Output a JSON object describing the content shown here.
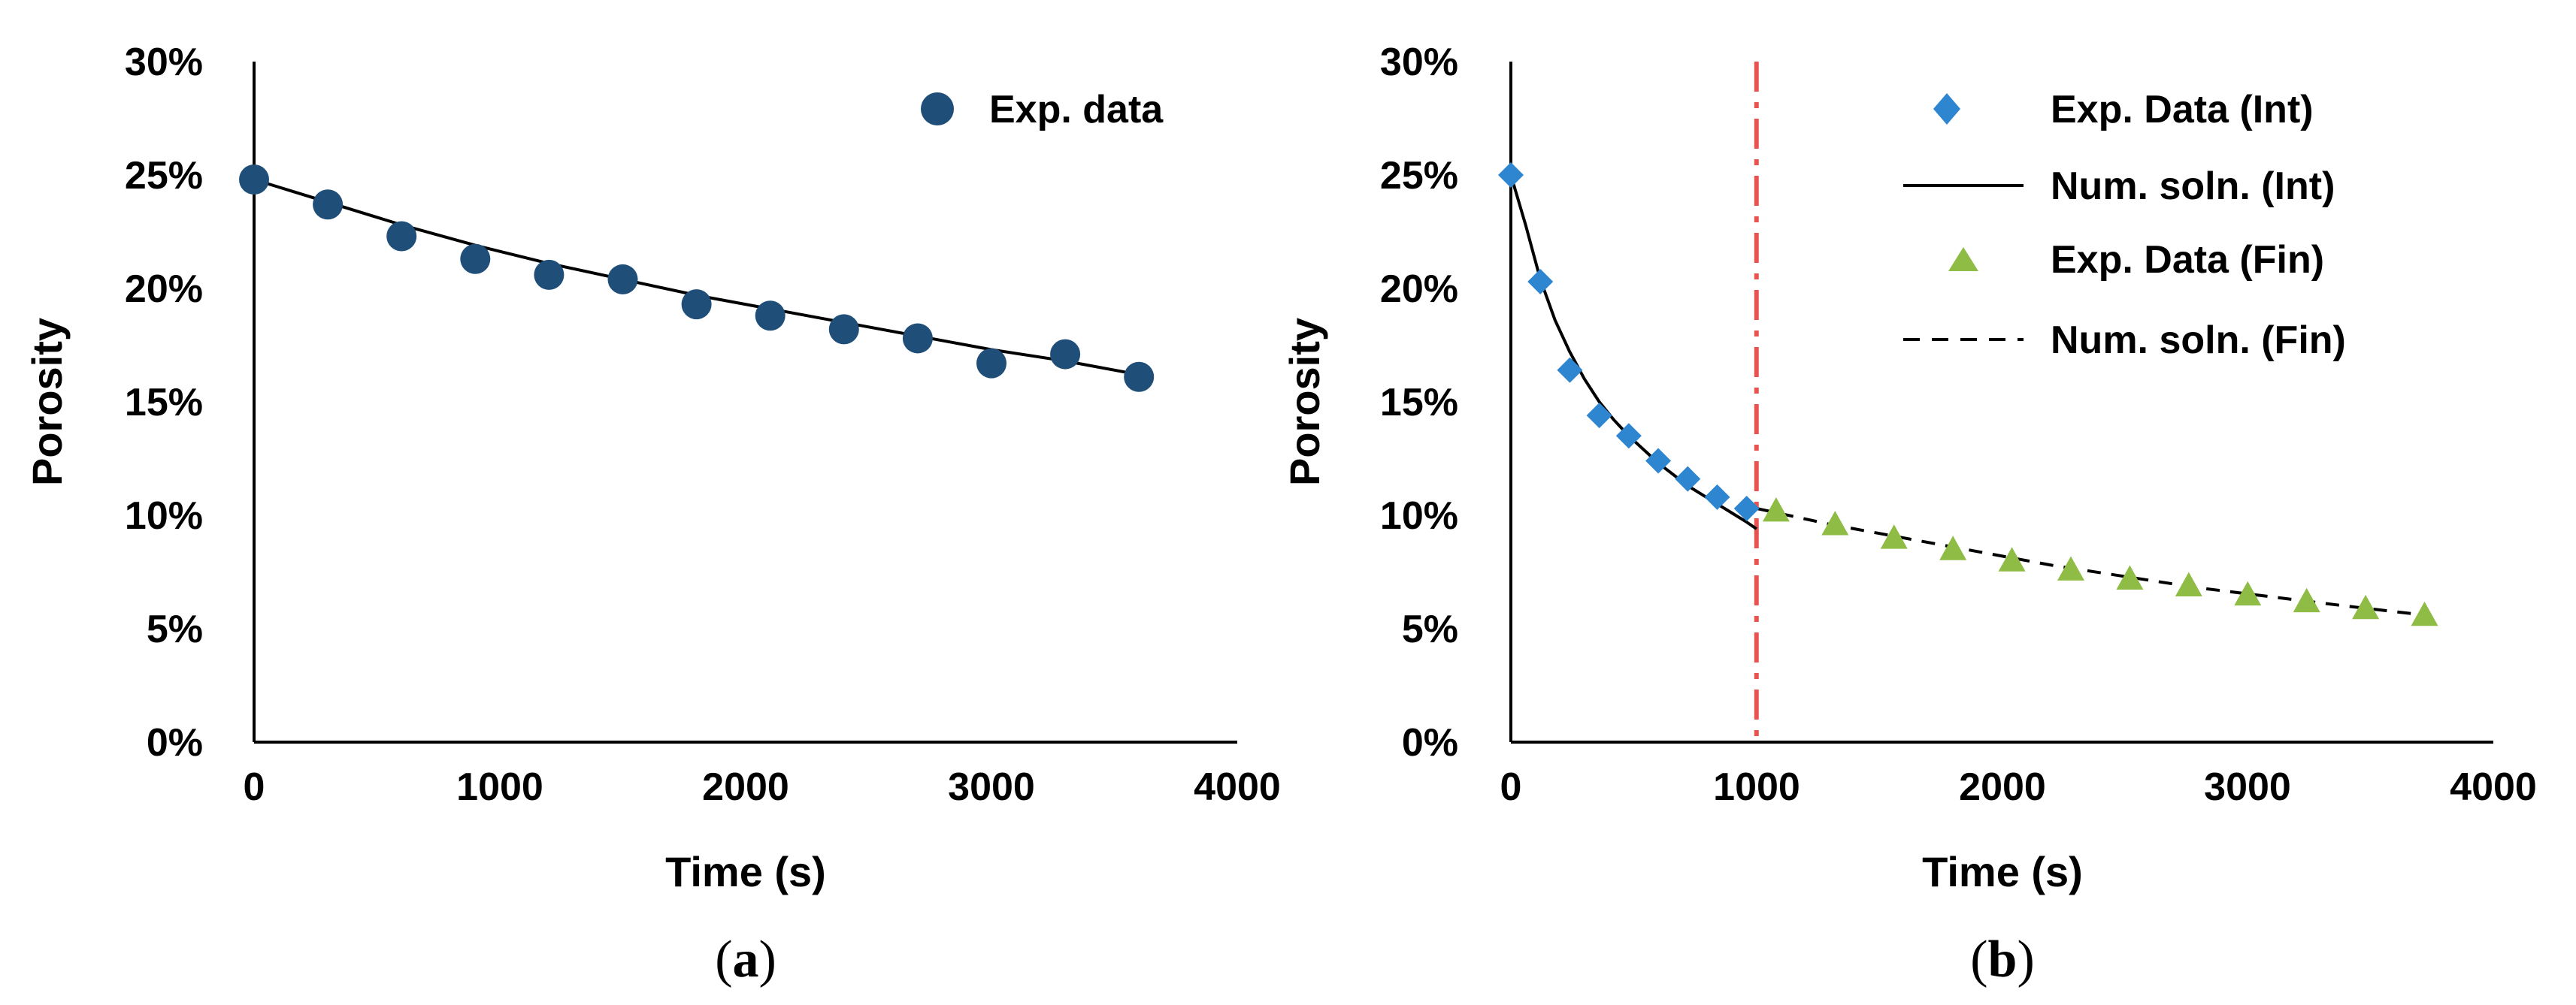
{
  "chart_data": [
    {
      "type": "scatter",
      "panel_label": {
        "open": "(",
        "letter": "a",
        "close": ")"
      },
      "xlabel": "Time (s)",
      "ylabel": "Porosity",
      "xlim": [
        0,
        4000
      ],
      "ylim": [
        0,
        30
      ],
      "xticks": [
        "0",
        "1000",
        "2000",
        "3000",
        "4000"
      ],
      "yticks": [
        "0%",
        "5%",
        "10%",
        "15%",
        "20%",
        "25%",
        "30%"
      ],
      "legend_position": "top-right",
      "series": [
        {
          "name": "Exp. data",
          "kind": "marker",
          "marker": "circle",
          "color": "#1f4e79",
          "x": [
            0,
            300,
            600,
            900,
            1200,
            1500,
            1800,
            2100,
            2400,
            2700,
            3000,
            3300,
            3600
          ],
          "y": [
            24.8,
            23.7,
            22.3,
            21.3,
            20.6,
            20.4,
            19.3,
            18.8,
            18.2,
            17.8,
            16.7,
            17.1,
            16.1
          ]
        },
        {
          "name": "",
          "kind": "line",
          "style": "solid",
          "color": "#000000",
          "x": [
            0,
            300,
            600,
            900,
            1200,
            1500,
            1800,
            2100,
            2400,
            2700,
            3000,
            3300,
            3600
          ],
          "y": [
            24.8,
            23.8,
            22.8,
            21.9,
            21.1,
            20.4,
            19.7,
            19.1,
            18.5,
            17.9,
            17.3,
            16.8,
            16.2
          ]
        }
      ]
    },
    {
      "type": "scatter",
      "panel_label": {
        "open": "(",
        "letter": "b",
        "close": ")"
      },
      "xlabel": "Time (s)",
      "ylabel": "Porosity",
      "xlim": [
        0,
        4000
      ],
      "ylim": [
        0,
        30
      ],
      "xticks": [
        "0",
        "1000",
        "2000",
        "3000",
        "4000"
      ],
      "yticks": [
        "0%",
        "5%",
        "10%",
        "15%",
        "20%",
        "25%",
        "30%"
      ],
      "legend_position": "top-right",
      "vline": {
        "x": 1000,
        "color": "#e8534f",
        "style": "dash-dot"
      },
      "series": [
        {
          "name": "Exp. Data (Int)",
          "kind": "marker",
          "marker": "diamond",
          "color": "#2e86d1",
          "x": [
            0,
            120,
            240,
            360,
            480,
            600,
            720,
            840,
            960
          ],
          "y": [
            25.0,
            20.3,
            16.4,
            14.4,
            13.5,
            12.4,
            11.6,
            10.8,
            10.3
          ]
        },
        {
          "name": "Num. soln. (Int)",
          "kind": "line",
          "style": "solid",
          "color": "#000000",
          "x": [
            0,
            60,
            120,
            180,
            240,
            300,
            360,
            420,
            480,
            540,
            600,
            660,
            720,
            780,
            840,
            900,
            960,
            1000
          ],
          "y": [
            25.0,
            22.8,
            20.4,
            18.6,
            17.2,
            16.0,
            15.0,
            14.2,
            13.5,
            12.9,
            12.3,
            11.8,
            11.3,
            10.9,
            10.5,
            10.1,
            9.7,
            9.4
          ]
        },
        {
          "name": "Exp. Data (Fin)",
          "kind": "marker",
          "marker": "triangle",
          "color": "#8fbc45",
          "x": [
            1080,
            1320,
            1560,
            1800,
            2040,
            2280,
            2520,
            2760,
            3000,
            3240,
            3480,
            3720
          ],
          "y": [
            10.2,
            9.6,
            9.0,
            8.5,
            8.0,
            7.6,
            7.2,
            6.9,
            6.5,
            6.2,
            5.9,
            5.6
          ]
        },
        {
          "name": "Num. soln. (Fin)",
          "kind": "line",
          "style": "dashed",
          "color": "#000000",
          "x": [
            1000,
            1300,
            1600,
            1900,
            2200,
            2500,
            2800,
            3100,
            3400,
            3720
          ],
          "y": [
            10.3,
            9.6,
            9.0,
            8.4,
            7.8,
            7.3,
            6.8,
            6.4,
            6.0,
            5.6
          ]
        }
      ]
    }
  ]
}
